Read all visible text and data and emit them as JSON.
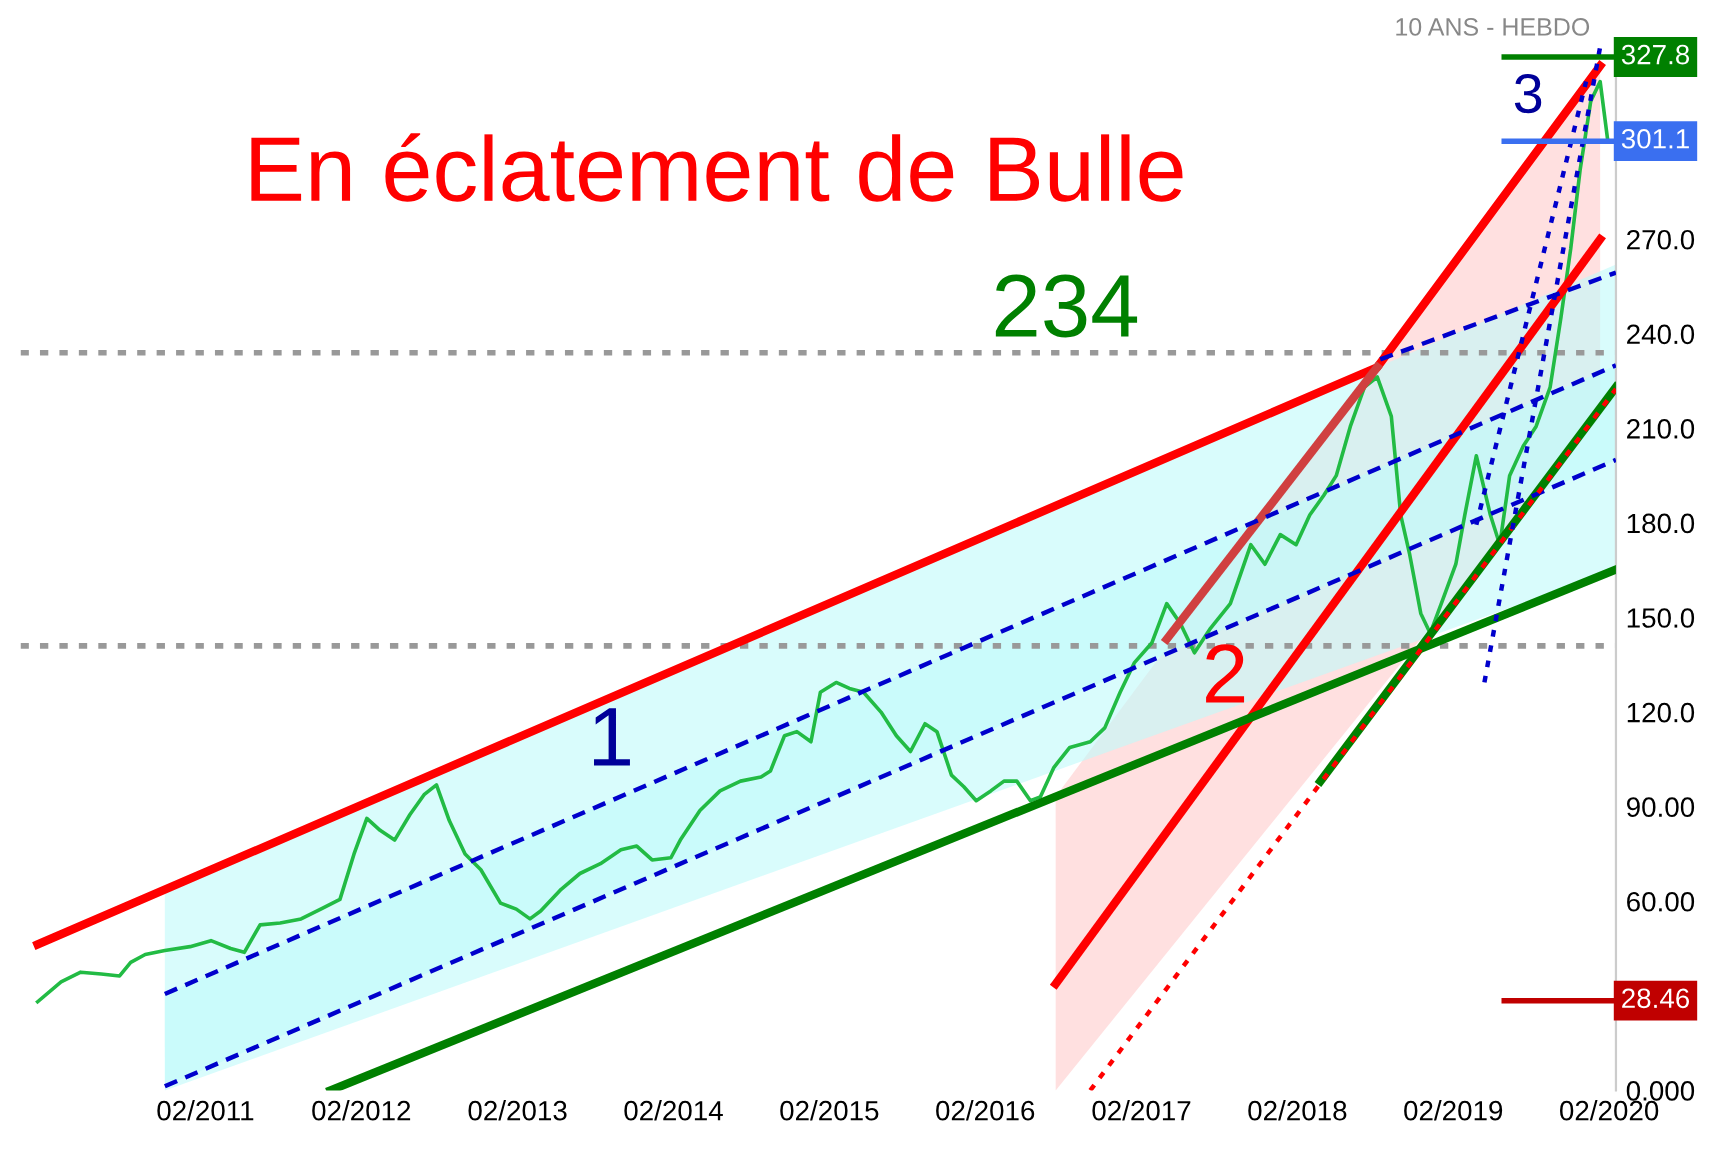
{
  "chart_data": {
    "type": "line",
    "title": "En éclatement de Bulle",
    "subtitle": "10 ANS - HEBDO",
    "xlim": [
      "2009-11-25",
      "2020-02-17"
    ],
    "ylim": [
      0,
      333
    ],
    "xticks": [
      {
        "value": "2011-02",
        "label": "02/2011"
      },
      {
        "value": "2012-02",
        "label": "02/2012"
      },
      {
        "value": "2013-02",
        "label": "02/2013"
      },
      {
        "value": "2014-02",
        "label": "02/2014"
      },
      {
        "value": "2015-02",
        "label": "02/2015"
      },
      {
        "value": "2016-02",
        "label": "02/2016"
      },
      {
        "value": "2017-02",
        "label": "02/2017"
      },
      {
        "value": "2018-02",
        "label": "02/2018"
      },
      {
        "value": "2019-02",
        "label": "02/2019"
      },
      {
        "value": "2020-02",
        "label": "02/2020"
      }
    ],
    "yticks": [
      {
        "value": 0,
        "label": "0.000"
      },
      {
        "value": 60,
        "label": "60.00"
      },
      {
        "value": 90,
        "label": "90.00"
      },
      {
        "value": 120,
        "label": "120.0"
      },
      {
        "value": 150,
        "label": "150.0"
      },
      {
        "value": 180,
        "label": "180.0"
      },
      {
        "value": 210,
        "label": "210.0"
      },
      {
        "value": 240,
        "label": "240.0"
      },
      {
        "value": 270,
        "label": "270.0"
      }
    ],
    "grid": false,
    "legend": false,
    "series": [
      {
        "type": "line",
        "color": "#ff0000",
        "line_style": "solid",
        "x": [
          "2010-01-04",
          "2018-08-07",
          "2020-01-11"
        ],
        "values": [
          46.3,
          229.4,
          325.0
        ]
      },
      {
        "type": "line",
        "color": "#d04040",
        "line_style": "solid",
        "x": [
          "2017-04-01",
          "2018-08-07"
        ],
        "values": [
          143.1,
          229.4
        ]
      },
      {
        "type": "line",
        "color": "#ff0000",
        "line_style": "solid",
        "x": [
          "2016-07-15",
          "2020-01-11"
        ],
        "values": [
          33.8,
          270.0
        ],
        "lower": [
          0,
          213.6
        ],
        "upper": [
          93.2,
          325.0
        ]
      },
      {
        "type": "line",
        "color": "#ff0000",
        "line_style": "dotted",
        "x": [
          "2016-10-04",
          "2020-02-17"
        ],
        "values": [
          0,
          222.5
        ]
      },
      {
        "type": "line",
        "color": "#008000",
        "line_style": "solid",
        "x": [
          "2011-11-21",
          "2020-02-17"
        ],
        "values": [
          0,
          165.2
        ]
      },
      {
        "type": "line",
        "color": "#008000",
        "line_style": "solid",
        "x": [
          "2018-03-27",
          "2020-02-17"
        ],
        "values": [
          98.1,
          223.1
        ]
      },
      {
        "type": "line",
        "color": "#0000cc",
        "line_style": "dashed",
        "x": [
          "2010-10-29",
          "2020-02-17"
        ],
        "values": [
          30.6,
          230.0
        ],
        "lower": [
          1.3,
          200.0
        ],
        "upper": [
          30.6,
          230.0
        ]
      },
      {
        "type": "line",
        "color": "#0000cc",
        "line_style": "dashed",
        "x": [
          "2010-10-29",
          "2020-02-17"
        ],
        "values": [
          1.3,
          200.0
        ],
        "lower": [
          0,
          165.2
        ],
        "upper": [
          63.8,
          262.0
        ]
      },
      {
        "type": "line",
        "color": "#0000cc",
        "line_style": "dashed",
        "x": [
          "2018-08-14",
          "2020-02-17"
        ],
        "values": [
          231.9,
          259.4
        ]
      },
      {
        "type": "line",
        "color": "#0000cc",
        "line_style": "dotted",
        "x": [
          "2019-04-15",
          "2020-01-11"
        ],
        "values": [
          129.4,
          331.0
        ]
      },
      {
        "type": "line",
        "color": "#0000cc",
        "line_style": "dotted",
        "x": [
          "2019-03-27",
          "2019-12-09"
        ],
        "values": [
          179.4,
          320.0
        ]
      },
      {
        "color": "#22bb44",
        "line_style": "solid",
        "x": [
          "2010-01-04",
          "2010-02-28",
          "2010-04-15",
          "2010-06-02",
          "2010-07-15",
          "2010-08-10",
          "2010-09-13",
          "2010-10-29",
          "2010-12-27",
          "2011-02-14",
          "2011-04-01",
          "2011-05-03",
          "2011-06-09",
          "2011-07-26",
          "2011-09-13",
          "2011-10-29",
          "2011-12-13",
          "2012-01-15",
          "2012-02-14",
          "2012-03-16",
          "2012-04-19",
          "2012-05-25",
          "2012-06-27",
          "2012-07-26",
          "2012-08-25",
          "2012-10-01",
          "2012-11-07",
          "2012-12-23",
          "2013-01-29",
          "2013-03-02",
          "2013-03-27",
          "2013-05-14",
          "2013-06-27",
          "2013-08-14",
          "2013-10-01",
          "2013-11-07",
          "2013-12-13",
          "2014-01-26",
          "2014-02-17",
          "2014-04-04",
          "2014-05-21",
          "2014-07-08",
          "2014-08-25",
          "2014-09-16",
          "2014-10-19",
          "2014-11-17",
          "2014-12-20",
          "2015-01-11",
          "2015-02-17",
          "2015-03-20",
          "2015-04-22",
          "2015-06-02",
          "2015-07-08",
          "2015-08-10",
          "2015-09-13",
          "2015-10-11",
          "2015-11-14",
          "2015-12-13",
          "2016-01-11",
          "2016-02-14",
          "2016-03-16",
          "2016-04-15",
          "2016-05-17",
          "2016-06-09",
          "2016-07-11",
          "2016-08-17",
          "2016-10-04",
          "2016-11-07",
          "2016-12-13",
          "2017-01-15",
          "2017-02-25",
          "2017-04-01",
          "2017-05-03",
          "2017-06-05",
          "2017-07-11",
          "2017-08-28",
          "2017-10-15",
          "2017-11-17",
          "2017-12-23",
          "2018-01-29",
          "2018-03-02",
          "2018-04-04",
          "2018-05-03",
          "2018-06-05",
          "2018-07-08",
          "2018-08-07",
          "2018-09-09",
          "2018-10-01",
          "2018-10-22",
          "2018-11-17",
          "2018-12-09",
          "2019-01-04",
          "2019-02-07",
          "2019-02-28",
          "2019-03-27",
          "2019-04-29",
          "2019-05-21",
          "2019-06-13",
          "2019-07-15",
          "2019-08-14",
          "2019-09-16",
          "2019-10-11",
          "2019-11-03",
          "2019-11-25",
          "2019-12-20",
          "2020-01-11",
          "2020-01-29"
        ],
        "values": [
          28.1,
          34.4,
          37.5,
          36.9,
          36.3,
          40.6,
          43.1,
          44.4,
          45.6,
          47.5,
          45.0,
          43.8,
          52.5,
          53.1,
          54.4,
          57.5,
          60.6,
          75.0,
          86.3,
          82.5,
          79.4,
          87.5,
          93.8,
          96.9,
          85.6,
          75.0,
          70.0,
          59.4,
          57.5,
          54.4,
          56.9,
          63.8,
          68.8,
          71.9,
          76.3,
          77.5,
          73.1,
          73.8,
          79.4,
          88.8,
          95.0,
          98.1,
          99.4,
          101.3,
          112.5,
          113.8,
          110.6,
          126.3,
          129.4,
          127.5,
          126.3,
          120.0,
          112.5,
          107.5,
          116.3,
          113.8,
          100.0,
          96.3,
          91.9,
          95.0,
          98.1,
          98.1,
          91.9,
          93.1,
          102.5,
          108.8,
          110.6,
          115.0,
          126.3,
          135.6,
          141.9,
          154.4,
          148.1,
          138.8,
          146.3,
          154.4,
          173.1,
          166.9,
          176.3,
          173.1,
          182.5,
          188.8,
          195.0,
          210.6,
          223.1,
          226.3,
          213.8,
          182.5,
          170.0,
          151.3,
          145.0,
          154.4,
          166.9,
          182.5,
          201.3,
          182.5,
          173.1,
          195.0,
          204.4,
          210.6,
          223.1,
          245.0,
          266.9,
          291.9,
          313.8,
          320.0,
          301.1
        ]
      }
    ],
    "ref_lines": [
      {
        "axis": "y",
        "value": 234,
        "color": "#999999",
        "line_style": "dotted"
      },
      {
        "axis": "y",
        "value": 141,
        "color": "#999999",
        "line_style": "dotted"
      },
      {
        "axis": "y",
        "value": 327.8,
        "label": "327.8",
        "color": "#008000",
        "line_style": "solid"
      },
      {
        "axis": "y",
        "value": 301.1,
        "label": "301.1",
        "color": "#3a6ff0",
        "line_style": "solid"
      },
      {
        "axis": "y",
        "value": 28.46,
        "label": "28.46",
        "color": "#c00000",
        "line_style": "solid"
      }
    ],
    "annotations": [
      "234",
      "1",
      "2",
      "3"
    ]
  }
}
